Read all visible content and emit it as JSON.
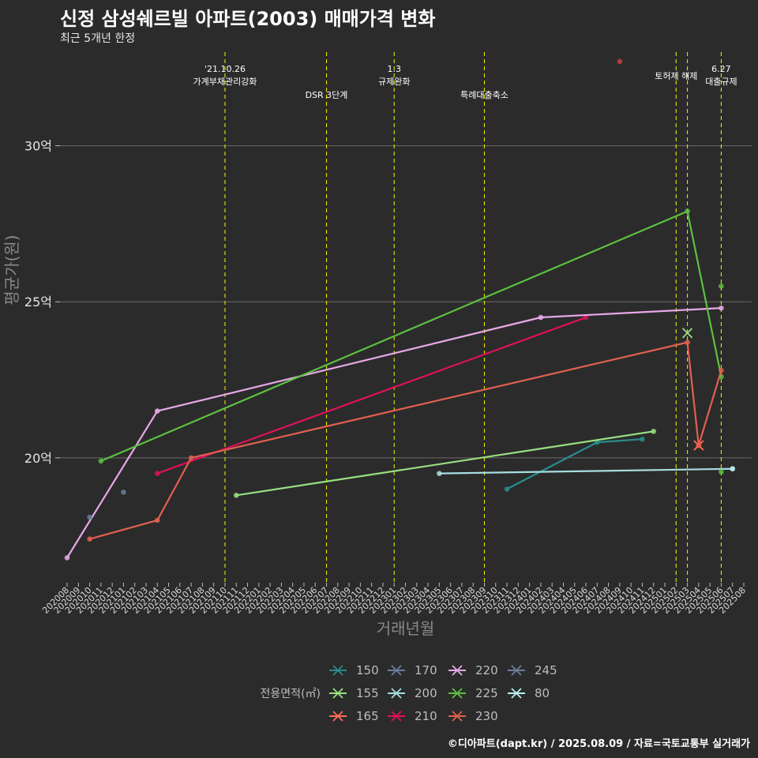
{
  "title": "신정 삼성쉐르빌 아파트(2003) 매매가격 변화",
  "subtitle": "최근 5개년 한정",
  "caption": "©디아파트(dapt.kr) / 2025.08.09 / 자료=국토교통부 실거래가",
  "chart_data": {
    "type": "line",
    "xlabel": "거래년월",
    "ylabel": "평균가(원)",
    "ylim": [
      16.0,
      33.0
    ],
    "yticks": [
      20,
      25,
      30
    ],
    "ytick_labels": [
      "20억",
      "25억",
      "30억"
    ],
    "months": [
      "202008",
      "202009",
      "202010",
      "202011",
      "202012",
      "202101",
      "202102",
      "202103",
      "202104",
      "202105",
      "202106",
      "202107",
      "202108",
      "202109",
      "202110",
      "202111",
      "202112",
      "202201",
      "202202",
      "202203",
      "202204",
      "202205",
      "202206",
      "202207",
      "202208",
      "202209",
      "202210",
      "202211",
      "202212",
      "202301",
      "202302",
      "202303",
      "202304",
      "202305",
      "202306",
      "202307",
      "202308",
      "202309",
      "202310",
      "202311",
      "202312",
      "202401",
      "202402",
      "202403",
      "202404",
      "202405",
      "202406",
      "202407",
      "202408",
      "202409",
      "202410",
      "202411",
      "202412",
      "202501",
      "202502",
      "202503",
      "202504",
      "202505",
      "202506",
      "202507",
      "202508"
    ],
    "legend_title": "전용면적(㎡)",
    "legend_labels": [
      "150",
      "155",
      "165",
      "170",
      "200",
      "210",
      "220",
      "225",
      "230",
      "245",
      "80"
    ],
    "series": [
      {
        "name": "150",
        "color": "#2a8c8c",
        "points": [
          [
            "202311",
            19.0
          ],
          [
            "202407",
            20.5
          ],
          [
            "202411",
            20.6
          ]
        ]
      },
      {
        "name": "155",
        "color": "#98e080",
        "points": [
          [
            "202111",
            18.8
          ],
          [
            "202412",
            20.85
          ]
        ],
        "marker": {
          "x": "202503",
          "y": 24.0
        }
      },
      {
        "name": "165",
        "color": "#ff6b5a",
        "points": [
          [
            "202504",
            20.4
          ]
        ],
        "marker": {
          "x": "202504",
          "y": 20.4
        }
      },
      {
        "name": "170",
        "color": "#6b7f9e",
        "points": [
          [
            "202101",
            18.9
          ]
        ]
      },
      {
        "name": "200",
        "color": "#a8dde0",
        "points": [
          [
            "202305",
            19.5
          ],
          [
            "202507",
            19.65
          ]
        ]
      },
      {
        "name": "210",
        "color": "#e0105a",
        "points": [
          [
            "202104",
            19.5
          ],
          [
            "202406",
            24.5
          ]
        ]
      },
      {
        "name": "220",
        "color": "#e8a8e8",
        "points": [
          [
            "202008",
            16.8
          ],
          [
            "202104",
            21.5
          ],
          [
            "202402",
            24.5
          ],
          [
            "202506",
            24.8
          ]
        ]
      },
      {
        "name": "225",
        "color": "#5cc040",
        "points": [
          [
            "202011",
            19.9
          ],
          [
            "202503",
            27.9
          ],
          [
            "202506",
            22.6
          ]
        ]
      },
      {
        "name": "230",
        "color": "#e06050",
        "points": [
          [
            "202010",
            17.4
          ],
          [
            "202104",
            18.0
          ],
          [
            "202107",
            20.0
          ],
          [
            "202503",
            23.7
          ],
          [
            "202504",
            20.4
          ],
          [
            "202506",
            22.8
          ]
        ]
      },
      {
        "name": "245",
        "color": "#6b7f9e",
        "points": [
          [
            "202010",
            18.1
          ]
        ]
      },
      {
        "name": "80",
        "color": "#b8eef0",
        "points": [
          [
            "202507",
            19.65
          ]
        ]
      }
    ],
    "extra_points": [
      {
        "x": "202409",
        "y": 32.7,
        "color": "#c04040"
      },
      {
        "x": "202506",
        "y": 25.5,
        "color": "#5cc040"
      },
      {
        "x": "202506",
        "y": 19.55,
        "color": "#5cc040"
      }
    ],
    "events": [
      {
        "month": "202110",
        "label_lines": [
          "'21.10.26",
          "가계부채관리강화"
        ],
        "row": 1
      },
      {
        "month": "202207",
        "label_lines": [
          "DSR 3단계"
        ],
        "row": 2
      },
      {
        "month": "202301",
        "label_lines": [
          "1.3",
          "규제완화"
        ],
        "row": 1
      },
      {
        "month": "202309",
        "label_lines": [
          "특례대출축소"
        ],
        "row": 2
      },
      {
        "month": "202502",
        "label_lines": [
          "토허제 해제"
        ],
        "row": 0
      },
      {
        "month": "202503",
        "label_lines": [],
        "row": 0
      },
      {
        "month": "202506",
        "label_lines": [
          "6.27",
          "대출규제"
        ],
        "row": 1
      }
    ]
  }
}
